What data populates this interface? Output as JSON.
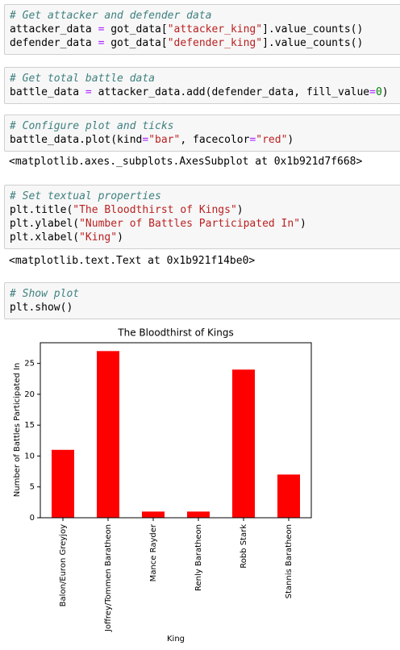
{
  "cells": [
    {
      "lines": [
        [
          {
            "text": "# Get attacker and defender data",
            "color": "#408080",
            "italic": true
          }
        ],
        [
          {
            "text": "attacker_data ",
            "color": "#000000"
          },
          {
            "text": "=",
            "color": "#aa22ff"
          },
          {
            "text": " got_data[",
            "color": "#000000"
          },
          {
            "text": "\"attacker_king\"",
            "color": "#ba2121"
          },
          {
            "text": "].value_counts()",
            "color": "#000000"
          }
        ],
        [
          {
            "text": "defender_data ",
            "color": "#000000"
          },
          {
            "text": "=",
            "color": "#aa22ff"
          },
          {
            "text": " got_data[",
            "color": "#000000"
          },
          {
            "text": "\"defender_king\"",
            "color": "#ba2121"
          },
          {
            "text": "].value_counts()",
            "color": "#000000"
          }
        ]
      ]
    },
    {
      "lines": [
        [
          {
            "text": "# Get total battle data",
            "color": "#408080",
            "italic": true
          }
        ],
        [
          {
            "text": "battle_data ",
            "color": "#000000"
          },
          {
            "text": "=",
            "color": "#aa22ff"
          },
          {
            "text": " attacker_data.add(defender_data, fill_value",
            "color": "#000000"
          },
          {
            "text": "=",
            "color": "#aa22ff"
          },
          {
            "text": "0",
            "color": "#008000"
          },
          {
            "text": ")",
            "color": "#000000"
          }
        ]
      ]
    },
    {
      "lines": [
        [
          {
            "text": "# Configure plot and ticks",
            "color": "#408080",
            "italic": true
          }
        ],
        [
          {
            "text": "battle_data.plot(kind",
            "color": "#000000"
          },
          {
            "text": "=",
            "color": "#aa22ff"
          },
          {
            "text": "\"bar\"",
            "color": "#ba2121"
          },
          {
            "text": ", facecolor",
            "color": "#000000"
          },
          {
            "text": "=",
            "color": "#aa22ff"
          },
          {
            "text": "\"red\"",
            "color": "#ba2121"
          },
          {
            "text": ")",
            "color": "#000000"
          }
        ]
      ],
      "output": "<matplotlib.axes._subplots.AxesSubplot at 0x1b921d7f668>"
    },
    {
      "lines": [
        [
          {
            "text": "# Set textual properties",
            "color": "#408080",
            "italic": true
          }
        ],
        [
          {
            "text": "plt.title(",
            "color": "#000000"
          },
          {
            "text": "\"The Bloodthirst of Kings\"",
            "color": "#ba2121"
          },
          {
            "text": ")",
            "color": "#000000"
          }
        ],
        [
          {
            "text": "plt.ylabel(",
            "color": "#000000"
          },
          {
            "text": "\"Number of Battles Participated In\"",
            "color": "#ba2121"
          },
          {
            "text": ")",
            "color": "#000000"
          }
        ],
        [
          {
            "text": "plt.xlabel(",
            "color": "#000000"
          },
          {
            "text": "\"King\"",
            "color": "#ba2121"
          },
          {
            "text": ")",
            "color": "#000000"
          }
        ]
      ],
      "output": "<matplotlib.text.Text at 0x1b921f14be0>"
    },
    {
      "lines": [
        [
          {
            "text": "# Show plot",
            "color": "#408080",
            "italic": true
          }
        ],
        [
          {
            "text": "plt.show()",
            "color": "#000000"
          }
        ]
      ]
    }
  ],
  "chart_data": {
    "type": "bar",
    "title": "The Bloodthirst of Kings",
    "x_label": "King",
    "y_label": "Number of Battles Participated In",
    "categories": [
      "Balon/Euron Greyjoy",
      "Joffrey/Tommen Baratheon",
      "Mance Rayder",
      "Renly Baratheon",
      "Robb Stark",
      "Stannis Baratheon"
    ],
    "values": [
      11,
      27,
      1,
      1,
      24,
      7
    ],
    "color": "#ff0000",
    "ylim": [
      0,
      28.35
    ],
    "yticks": [
      0,
      5,
      10,
      15,
      20,
      25
    ]
  }
}
